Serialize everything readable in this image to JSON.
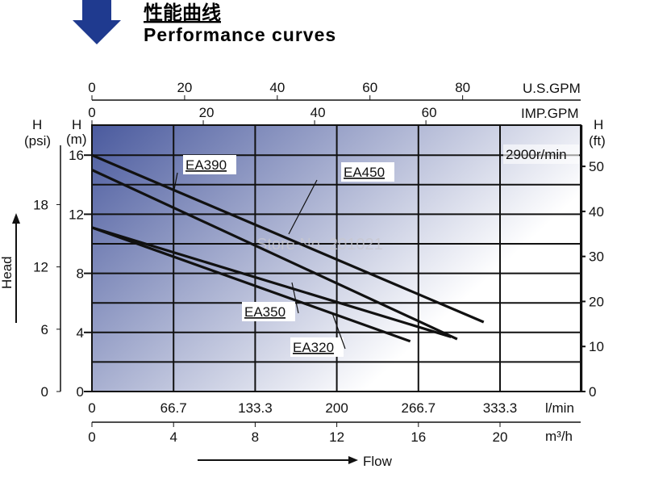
{
  "header": {
    "title_cn": "性能曲线",
    "title_en": "Performance curves",
    "arrow_color": "#1f3a8f"
  },
  "chart_data": {
    "type": "line",
    "title": "Performance curves",
    "speed_label": "2900r/min",
    "watermark": "Store No. 201021",
    "x_unit_lmin": "l/min",
    "x_unit_m3h": "m³/h",
    "x_label": "Flow",
    "y_label": "Head",
    "left_axis_psi": {
      "label": "H",
      "unit": "(psi)",
      "ticks": [
        0,
        6,
        12,
        18
      ]
    },
    "left_axis_m": {
      "label": "H",
      "unit": "(m)",
      "ticks": [
        0,
        4,
        8,
        12,
        16
      ]
    },
    "right_axis_ft": {
      "label": "H",
      "unit": "(ft)",
      "ticks": [
        0,
        10,
        20,
        30,
        40,
        50
      ]
    },
    "top_axis_usgpm": {
      "label": "U.S.GPM",
      "ticks": [
        0,
        20,
        40,
        60,
        80
      ]
    },
    "top_axis_impgpm": {
      "label": "IMP.GPM",
      "ticks": [
        0,
        20,
        40,
        60
      ]
    },
    "lmin_ticks": [
      "0",
      "66.7",
      "133.3",
      "200",
      "266.7",
      "333.3"
    ],
    "m3h_ticks": [
      0,
      4,
      8,
      12,
      16,
      20
    ],
    "xlim_m3h": [
      0,
      24
    ],
    "ylim_m": [
      0,
      18
    ],
    "grid": true,
    "gradient_colors": [
      "#4a5a9e",
      "#ffffff"
    ],
    "series": [
      {
        "name": "EA450",
        "x": [
          0,
          19.2
        ],
        "y": [
          16.0,
          4.7
        ]
      },
      {
        "name": "EA390",
        "x": [
          0,
          17.9
        ],
        "y": [
          15.0,
          3.55
        ]
      },
      {
        "name": "EA350",
        "x": [
          0,
          17.6
        ],
        "y": [
          11.1,
          3.7
        ]
      },
      {
        "name": "EA320",
        "x": [
          0,
          15.6
        ],
        "y": [
          11.1,
          3.4
        ]
      }
    ]
  }
}
